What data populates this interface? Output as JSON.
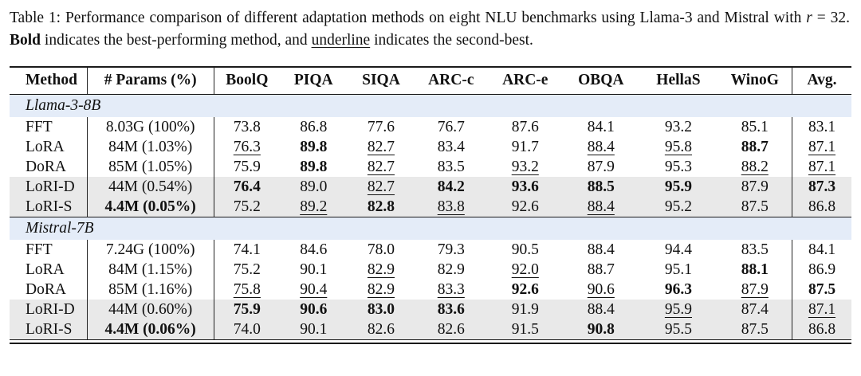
{
  "caption": {
    "prefix": "Table 1: Performance comparison of different adaptation methods on eight NLU benchmarks using Llama-3 and Mistral with ",
    "math_var": "r",
    "math_eq": " = 32. ",
    "bold_word": "Bold",
    "mid_text": " indicates the best-performing method, and ",
    "underline_word": "underline",
    "suffix": " indicates the second-best."
  },
  "table": {
    "columns": [
      "Method",
      "# Params (%)",
      "BoolQ",
      "PIQA",
      "SIQA",
      "ARC-c",
      "ARC-e",
      "OBQA",
      "HellaS",
      "WinoG",
      "Avg."
    ],
    "section_band_color": "#e4ecf8",
    "highlight_row_color": "#e9e9e9",
    "style_legend": {
      "b": "bold = best",
      "u": "underline = second-best"
    },
    "sections": [
      {
        "name": "Llama-3-8B",
        "rows": [
          {
            "method": "FFT",
            "params": "8.03G (100%)",
            "params_bold": false,
            "highlight": false,
            "cells": [
              [
                "73.8",
                ""
              ],
              [
                "86.8",
                ""
              ],
              [
                "77.6",
                ""
              ],
              [
                "76.7",
                ""
              ],
              [
                "87.6",
                ""
              ],
              [
                "84.1",
                ""
              ],
              [
                "93.2",
                ""
              ],
              [
                "85.1",
                ""
              ],
              [
                "83.1",
                ""
              ]
            ]
          },
          {
            "method": "LoRA",
            "params": "84M (1.03%)",
            "params_bold": false,
            "highlight": false,
            "cells": [
              [
                "76.3",
                "u"
              ],
              [
                "89.8",
                "b"
              ],
              [
                "82.7",
                "u"
              ],
              [
                "83.4",
                ""
              ],
              [
                "91.7",
                ""
              ],
              [
                "88.4",
                "u"
              ],
              [
                "95.8",
                "u"
              ],
              [
                "88.7",
                "b"
              ],
              [
                "87.1",
                "u"
              ]
            ]
          },
          {
            "method": "DoRA",
            "params": "85M (1.05%)",
            "params_bold": false,
            "highlight": false,
            "cells": [
              [
                "75.9",
                ""
              ],
              [
                "89.8",
                "b"
              ],
              [
                "82.7",
                "u"
              ],
              [
                "83.5",
                ""
              ],
              [
                "93.2",
                "u"
              ],
              [
                "87.9",
                ""
              ],
              [
                "95.3",
                ""
              ],
              [
                "88.2",
                "u"
              ],
              [
                "87.1",
                "u"
              ]
            ]
          },
          {
            "method": "LoRI-D",
            "params": "44M (0.54%)",
            "params_bold": false,
            "highlight": true,
            "cells": [
              [
                "76.4",
                "b"
              ],
              [
                "89.0",
                ""
              ],
              [
                "82.7",
                "u"
              ],
              [
                "84.2",
                "b"
              ],
              [
                "93.6",
                "b"
              ],
              [
                "88.5",
                "b"
              ],
              [
                "95.9",
                "b"
              ],
              [
                "87.9",
                ""
              ],
              [
                "87.3",
                "b"
              ]
            ]
          },
          {
            "method": "LoRI-S",
            "params": "4.4M (0.05%)",
            "params_bold": true,
            "highlight": true,
            "cells": [
              [
                "75.2",
                ""
              ],
              [
                "89.2",
                "u"
              ],
              [
                "82.8",
                "b"
              ],
              [
                "83.8",
                "u"
              ],
              [
                "92.6",
                ""
              ],
              [
                "88.4",
                "u"
              ],
              [
                "95.2",
                ""
              ],
              [
                "87.5",
                ""
              ],
              [
                "86.8",
                ""
              ]
            ]
          }
        ]
      },
      {
        "name": "Mistral-7B",
        "rows": [
          {
            "method": "FFT",
            "params": "7.24G (100%)",
            "params_bold": false,
            "highlight": false,
            "cells": [
              [
                "74.1",
                ""
              ],
              [
                "84.6",
                ""
              ],
              [
                "78.0",
                ""
              ],
              [
                "79.3",
                ""
              ],
              [
                "90.5",
                ""
              ],
              [
                "88.4",
                ""
              ],
              [
                "94.4",
                ""
              ],
              [
                "83.5",
                ""
              ],
              [
                "84.1",
                ""
              ]
            ]
          },
          {
            "method": "LoRA",
            "params": "84M (1.15%)",
            "params_bold": false,
            "highlight": false,
            "cells": [
              [
                "75.2",
                ""
              ],
              [
                "90.1",
                ""
              ],
              [
                "82.9",
                "u"
              ],
              [
                "82.9",
                ""
              ],
              [
                "92.0",
                "u"
              ],
              [
                "88.7",
                ""
              ],
              [
                "95.1",
                ""
              ],
              [
                "88.1",
                "b"
              ],
              [
                "86.9",
                ""
              ]
            ]
          },
          {
            "method": "DoRA",
            "params": "85M (1.16%)",
            "params_bold": false,
            "highlight": false,
            "cells": [
              [
                "75.8",
                "u"
              ],
              [
                "90.4",
                "u"
              ],
              [
                "82.9",
                "u"
              ],
              [
                "83.3",
                "u"
              ],
              [
                "92.6",
                "b"
              ],
              [
                "90.6",
                "u"
              ],
              [
                "96.3",
                "b"
              ],
              [
                "87.9",
                "u"
              ],
              [
                "87.5",
                "b"
              ]
            ]
          },
          {
            "method": "LoRI-D",
            "params": "44M (0.60%)",
            "params_bold": false,
            "highlight": true,
            "cells": [
              [
                "75.9",
                "b"
              ],
              [
                "90.6",
                "b"
              ],
              [
                "83.0",
                "b"
              ],
              [
                "83.6",
                "b"
              ],
              [
                "91.9",
                ""
              ],
              [
                "88.4",
                ""
              ],
              [
                "95.9",
                "u"
              ],
              [
                "87.4",
                ""
              ],
              [
                "87.1",
                "u"
              ]
            ]
          },
          {
            "method": "LoRI-S",
            "params": "4.4M (0.06%)",
            "params_bold": true,
            "highlight": true,
            "cells": [
              [
                "74.0",
                ""
              ],
              [
                "90.1",
                ""
              ],
              [
                "82.6",
                ""
              ],
              [
                "82.6",
                ""
              ],
              [
                "91.5",
                ""
              ],
              [
                "90.8",
                "b"
              ],
              [
                "95.5",
                ""
              ],
              [
                "87.5",
                ""
              ],
              [
                "86.8",
                ""
              ]
            ]
          }
        ]
      }
    ]
  }
}
